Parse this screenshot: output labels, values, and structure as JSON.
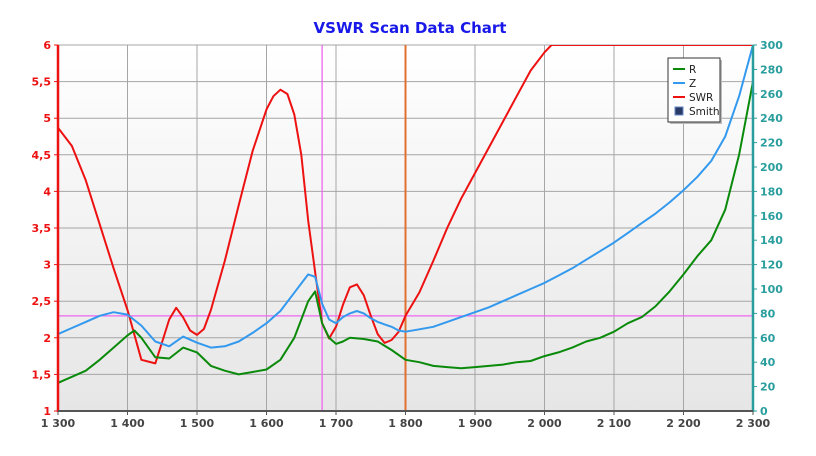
{
  "chart_data": {
    "type": "line",
    "title": "VSWR Scan Data Chart",
    "xlabel": "",
    "ylabel_left": "",
    "ylabel_right": "",
    "x_ticks": [
      1300,
      1400,
      1500,
      1600,
      1700,
      1800,
      1900,
      2000,
      2100,
      2200,
      2300
    ],
    "x_tick_labels": [
      "1 300",
      "1 400",
      "1 500",
      "1 600",
      "1 700",
      "1 800",
      "1 900",
      "2 000",
      "2 100",
      "2 200",
      "2 300"
    ],
    "xlim": [
      1300,
      2300
    ],
    "y_left_ticks": [
      1,
      1.5,
      2,
      2.5,
      3,
      3.5,
      4,
      4.5,
      5,
      5.5,
      6
    ],
    "y_left_tick_labels": [
      "1",
      "1,5",
      "2",
      "2,5",
      "3",
      "3,5",
      "4",
      "4,5",
      "5",
      "5,5",
      "6"
    ],
    "y_left_lim": [
      1,
      6
    ],
    "y_right_ticks": [
      0,
      20,
      40,
      60,
      80,
      100,
      120,
      140,
      160,
      180,
      200,
      220,
      240,
      260,
      280,
      300
    ],
    "y_right_lim": [
      0,
      300
    ],
    "grid": true,
    "legend": {
      "position": "top-right",
      "entries": [
        {
          "name": "R",
          "color": "#0a8a0a",
          "symbol": "line"
        },
        {
          "name": "Z",
          "color": "#3399ee",
          "symbol": "line"
        },
        {
          "name": "SWR",
          "color": "#ee1111",
          "symbol": "line"
        },
        {
          "name": "Smith",
          "color": "#2a3a66",
          "symbol": "square"
        }
      ]
    },
    "markers": [
      {
        "type": "vertical",
        "x": 1680,
        "color": "#ee66ee"
      },
      {
        "type": "vertical",
        "x": 1800,
        "color": "#e07030"
      },
      {
        "type": "horizontal",
        "axis": "left",
        "y": 2.3,
        "color": "#ee66ee"
      }
    ],
    "series": [
      {
        "name": "SWR",
        "axis": "left",
        "color": "#ee1111",
        "x": [
          1300,
          1320,
          1340,
          1360,
          1380,
          1400,
          1420,
          1440,
          1450,
          1460,
          1470,
          1480,
          1490,
          1500,
          1510,
          1520,
          1540,
          1560,
          1580,
          1600,
          1610,
          1620,
          1630,
          1640,
          1650,
          1660,
          1670,
          1680,
          1690,
          1700,
          1710,
          1720,
          1730,
          1740,
          1750,
          1760,
          1770,
          1780,
          1790,
          1800,
          1820,
          1840,
          1860,
          1880,
          1900,
          1920,
          1940,
          1960,
          1980,
          2000,
          2010,
          2020,
          2050,
          2100,
          2150,
          2200,
          2250,
          2300
        ],
        "values": [
          4.87,
          4.62,
          4.15,
          3.55,
          2.95,
          2.38,
          1.7,
          1.65,
          1.95,
          2.25,
          2.41,
          2.28,
          2.1,
          2.04,
          2.12,
          2.38,
          3.05,
          3.81,
          4.55,
          5.12,
          5.3,
          5.39,
          5.33,
          5.05,
          4.5,
          3.6,
          2.9,
          2.2,
          1.99,
          2.15,
          2.45,
          2.69,
          2.73,
          2.58,
          2.3,
          2.05,
          1.93,
          1.97,
          2.08,
          2.3,
          2.62,
          3.05,
          3.5,
          3.9,
          4.25,
          4.6,
          4.95,
          5.3,
          5.65,
          5.9,
          6.0,
          6.0,
          6.0,
          6.0,
          6.0,
          6.0,
          6.0,
          6.0
        ]
      },
      {
        "name": "Z",
        "axis": "right",
        "color": "#3399ee",
        "x": [
          1300,
          1320,
          1340,
          1360,
          1380,
          1400,
          1420,
          1440,
          1460,
          1480,
          1500,
          1520,
          1540,
          1560,
          1580,
          1600,
          1620,
          1640,
          1660,
          1670,
          1680,
          1690,
          1700,
          1710,
          1720,
          1730,
          1740,
          1750,
          1760,
          1770,
          1780,
          1790,
          1800,
          1820,
          1840,
          1860,
          1880,
          1900,
          1920,
          1940,
          1960,
          1980,
          2000,
          2020,
          2040,
          2060,
          2080,
          2100,
          2120,
          2140,
          2160,
          2180,
          2200,
          2220,
          2240,
          2260,
          2280,
          2300
        ],
        "values": [
          63,
          68,
          73,
          78,
          81,
          79,
          70,
          57,
          53,
          61,
          56,
          52,
          53,
          57,
          64,
          72,
          82,
          97,
          112,
          110,
          88,
          75,
          72,
          77,
          80,
          82,
          80,
          76,
          73,
          71,
          69,
          66,
          65,
          67,
          69,
          73,
          77,
          81,
          85,
          90,
          95,
          100,
          105,
          111,
          117,
          124,
          131,
          138,
          146,
          154,
          162,
          171,
          181,
          192,
          205,
          225,
          258,
          300
        ]
      },
      {
        "name": "R",
        "axis": "right",
        "color": "#0a8a0a",
        "x": [
          1300,
          1320,
          1340,
          1360,
          1380,
          1400,
          1410,
          1420,
          1440,
          1460,
          1480,
          1500,
          1520,
          1540,
          1560,
          1580,
          1600,
          1620,
          1640,
          1650,
          1660,
          1670,
          1680,
          1690,
          1700,
          1710,
          1720,
          1740,
          1760,
          1780,
          1800,
          1820,
          1840,
          1860,
          1880,
          1900,
          1920,
          1940,
          1960,
          1980,
          2000,
          2020,
          2040,
          2060,
          2080,
          2100,
          2120,
          2140,
          2160,
          2180,
          2200,
          2220,
          2240,
          2260,
          2280,
          2300
        ],
        "values": [
          23,
          28,
          33,
          42,
          52,
          62,
          66,
          60,
          44,
          43,
          52,
          48,
          37,
          33,
          30,
          32,
          34,
          42,
          60,
          75,
          90,
          98,
          72,
          60,
          55,
          57,
          60,
          59,
          57,
          50,
          42,
          40,
          37,
          36,
          35,
          36,
          37,
          38,
          40,
          41,
          45,
          48,
          52,
          57,
          60,
          65,
          72,
          77,
          86,
          98,
          112,
          127,
          140,
          165,
          210,
          270
        ]
      }
    ]
  }
}
